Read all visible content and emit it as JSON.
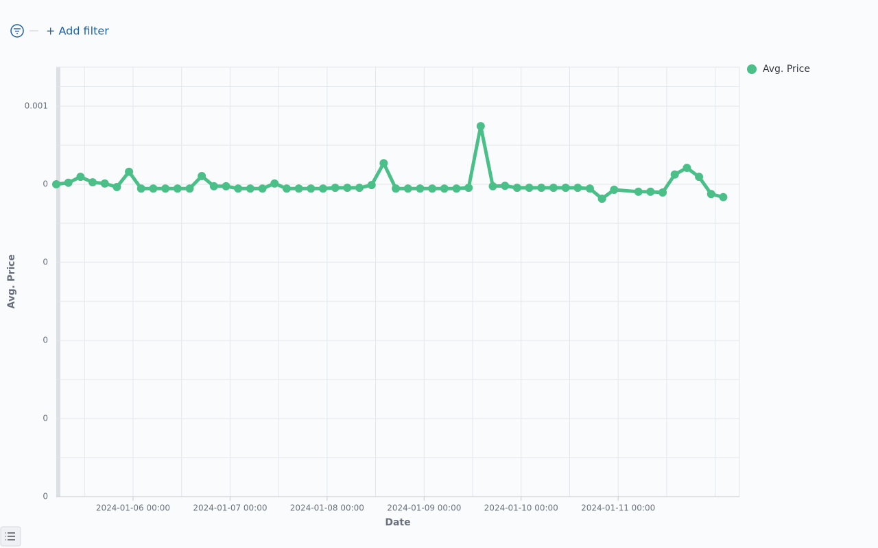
{
  "filter_bar": {
    "add_filter": "+ Add filter"
  },
  "chart_data": {
    "type": "line",
    "xlabel": "Date",
    "ylabel": "Avg. Price",
    "x": [
      "2024-01-05 05:00",
      "2024-01-05 08:00",
      "2024-01-05 11:00",
      "2024-01-05 14:00",
      "2024-01-05 17:00",
      "2024-01-05 20:00",
      "2024-01-05 23:00",
      "2024-01-06 02:00",
      "2024-01-06 05:00",
      "2024-01-06 08:00",
      "2024-01-06 11:00",
      "2024-01-06 14:00",
      "2024-01-06 17:00",
      "2024-01-06 20:00",
      "2024-01-06 23:00",
      "2024-01-07 02:00",
      "2024-01-07 05:00",
      "2024-01-07 08:00",
      "2024-01-07 11:00",
      "2024-01-07 14:00",
      "2024-01-07 17:00",
      "2024-01-07 20:00",
      "2024-01-07 23:00",
      "2024-01-08 02:00",
      "2024-01-08 05:00",
      "2024-01-08 08:00",
      "2024-01-08 11:00",
      "2024-01-08 14:00",
      "2024-01-08 17:00",
      "2024-01-08 20:00",
      "2024-01-08 23:00",
      "2024-01-09 02:00",
      "2024-01-09 05:00",
      "2024-01-09 08:00",
      "2024-01-09 11:00",
      "2024-01-09 14:00",
      "2024-01-09 17:00",
      "2024-01-09 20:00",
      "2024-01-09 23:00",
      "2024-01-10 02:00",
      "2024-01-10 05:00",
      "2024-01-10 08:00",
      "2024-01-10 11:00",
      "2024-01-10 14:00",
      "2024-01-10 17:00",
      "2024-01-10 20:00",
      "2024-01-10 23:00",
      "2024-01-11 05:00",
      "2024-01-11 08:00",
      "2024-01-11 11:00",
      "2024-01-11 14:00",
      "2024-01-11 17:00",
      "2024-01-11 20:00",
      "2024-01-11 23:00",
      "2024-01-12 02:00"
    ],
    "series": [
      {
        "name": "Avg. Price",
        "color": "#4bbf88",
        "values": [
          0.0008,
          0.000804,
          0.000819,
          0.000805,
          0.000802,
          0.000793,
          0.000832,
          0.000789,
          0.000789,
          0.000789,
          0.000789,
          0.000789,
          0.000821,
          0.000795,
          0.000795,
          0.000789,
          0.000789,
          0.000789,
          0.000802,
          0.000789,
          0.000789,
          0.000789,
          0.000789,
          0.000791,
          0.000791,
          0.000791,
          0.000798,
          0.000854,
          0.000789,
          0.000789,
          0.000789,
          0.000789,
          0.000789,
          0.000789,
          0.000791,
          0.000949,
          0.000795,
          0.000796,
          0.000791,
          0.000791,
          0.000791,
          0.000791,
          0.000791,
          0.000791,
          0.000789,
          0.000763,
          0.000786,
          0.000781,
          0.000781,
          0.000779,
          0.000825,
          0.000842,
          0.000819,
          0.000775,
          0.000767
        ]
      }
    ],
    "xlim": [
      "2024-01-05 05:00",
      "2024-01-12 06:00"
    ],
    "xticks": [
      "2024-01-06 00:00",
      "2024-01-07 00:00",
      "2024-01-08 00:00",
      "2024-01-09 00:00",
      "2024-01-10 00:00",
      "2024-01-11 00:00"
    ],
    "ylim": [
      0,
      0.0011
    ],
    "yticks": [
      0,
      {
        "value": 0.0002,
        "label": "0"
      },
      {
        "value": 0.0004,
        "label": "0"
      },
      {
        "value": 0.0006,
        "label": "0"
      },
      {
        "value": 0.0008,
        "label": "0"
      },
      0.001
    ],
    "grid": true,
    "legend": "right"
  }
}
